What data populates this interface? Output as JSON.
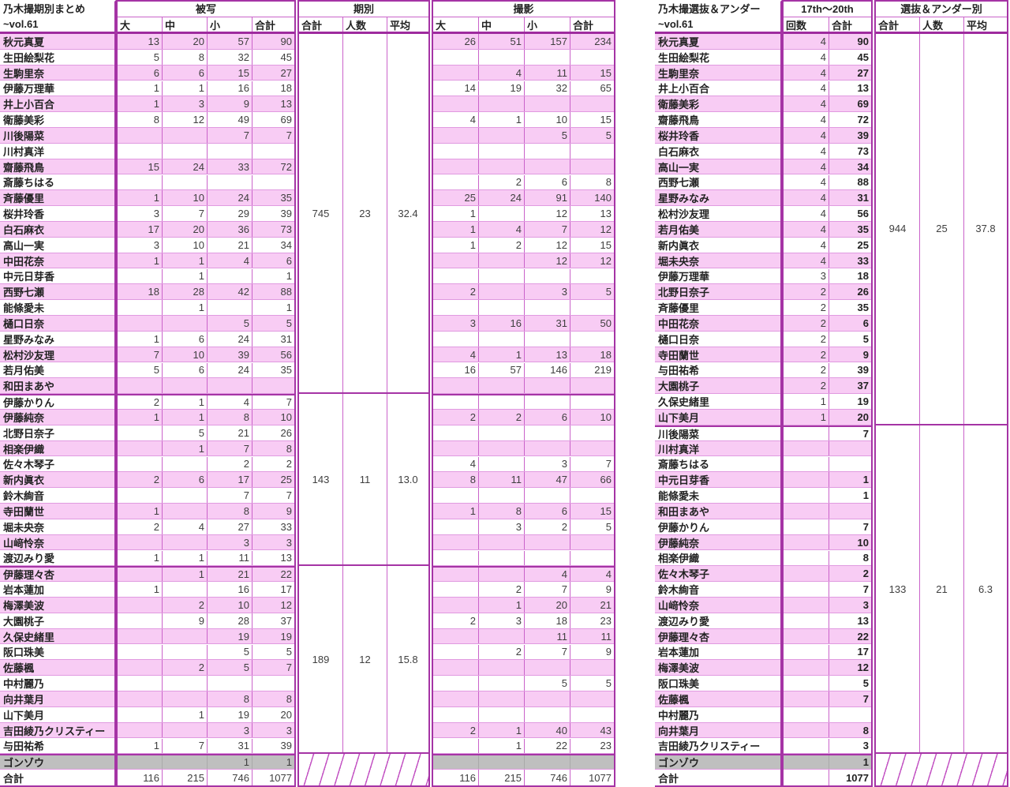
{
  "colors": {
    "row_pink": "#f8ccf4",
    "row_white": "#ffffff",
    "row_gray": "#bfbfbf",
    "grid_strong": "#a534a5",
    "grid_light": "#e09ae0",
    "grid_column": "#ca63ca",
    "header_separator": "#9e2b9e",
    "text": "#3f3f3f"
  },
  "left_table": {
    "title_line1": "乃木撮期別まとめ",
    "title_line2": "~vol.61",
    "hisha_header": "被写",
    "hisha_columns": [
      "大",
      "中",
      "小",
      "合計"
    ],
    "kibetsu_header": "期別",
    "kibetsu_columns": [
      "合計",
      "人数",
      "平均"
    ],
    "satsuei_header": "撮影",
    "satsuei_columns": [
      "大",
      "中",
      "小",
      "合計"
    ],
    "kibetsu_groups": [
      {
        "span": [
          0,
          22
        ],
        "values": [
          "745",
          "23",
          "32.4"
        ]
      },
      {
        "span": [
          23,
          33
        ],
        "values": [
          "143",
          "11",
          "13.0"
        ]
      },
      {
        "span": [
          34,
          45
        ],
        "values": [
          "189",
          "12",
          "15.8"
        ]
      }
    ],
    "rows": [
      {
        "name": "秋元真夏",
        "hisha": [
          "13",
          "20",
          "57",
          "90"
        ],
        "satsuei": [
          "26",
          "51",
          "157",
          "234"
        ]
      },
      {
        "name": "生田絵梨花",
        "hisha": [
          "5",
          "8",
          "32",
          "45"
        ],
        "satsuei": [
          "",
          "",
          "",
          ""
        ]
      },
      {
        "name": "生駒里奈",
        "hisha": [
          "6",
          "6",
          "15",
          "27"
        ],
        "satsuei": [
          "",
          "4",
          "11",
          "15"
        ]
      },
      {
        "name": "伊藤万理華",
        "hisha": [
          "1",
          "1",
          "16",
          "18"
        ],
        "satsuei": [
          "14",
          "19",
          "32",
          "65"
        ]
      },
      {
        "name": "井上小百合",
        "hisha": [
          "1",
          "3",
          "9",
          "13"
        ],
        "satsuei": [
          "",
          "",
          "",
          ""
        ]
      },
      {
        "name": "衛藤美彩",
        "hisha": [
          "8",
          "12",
          "49",
          "69"
        ],
        "satsuei": [
          "4",
          "1",
          "10",
          "15"
        ]
      },
      {
        "name": "川後陽菜",
        "hisha": [
          "",
          "",
          "7",
          "7"
        ],
        "satsuei": [
          "",
          "",
          "5",
          "5"
        ]
      },
      {
        "name": "川村真洋",
        "hisha": [
          "",
          "",
          "",
          ""
        ],
        "satsuei": [
          "",
          "",
          "",
          ""
        ]
      },
      {
        "name": "齋藤飛鳥",
        "hisha": [
          "15",
          "24",
          "33",
          "72"
        ],
        "satsuei": [
          "",
          "",
          "",
          ""
        ]
      },
      {
        "name": "斎藤ちはる",
        "hisha": [
          "",
          "",
          "",
          ""
        ],
        "satsuei": [
          "",
          "2",
          "6",
          "8"
        ]
      },
      {
        "name": "斉藤優里",
        "hisha": [
          "1",
          "10",
          "24",
          "35"
        ],
        "satsuei": [
          "25",
          "24",
          "91",
          "140"
        ]
      },
      {
        "name": "桜井玲香",
        "hisha": [
          "3",
          "7",
          "29",
          "39"
        ],
        "satsuei": [
          "1",
          "",
          "12",
          "13"
        ]
      },
      {
        "name": "白石麻衣",
        "hisha": [
          "17",
          "20",
          "36",
          "73"
        ],
        "satsuei": [
          "1",
          "4",
          "7",
          "12"
        ]
      },
      {
        "name": "高山一実",
        "hisha": [
          "3",
          "10",
          "21",
          "34"
        ],
        "satsuei": [
          "1",
          "2",
          "12",
          "15"
        ]
      },
      {
        "name": "中田花奈",
        "hisha": [
          "1",
          "1",
          "4",
          "6"
        ],
        "satsuei": [
          "",
          "",
          "12",
          "12"
        ]
      },
      {
        "name": "中元日芽香",
        "hisha": [
          "",
          "1",
          "",
          "1"
        ],
        "satsuei": [
          "",
          "",
          "",
          ""
        ]
      },
      {
        "name": "西野七瀬",
        "hisha": [
          "18",
          "28",
          "42",
          "88"
        ],
        "satsuei": [
          "2",
          "",
          "3",
          "5"
        ]
      },
      {
        "name": "能條愛未",
        "hisha": [
          "",
          "1",
          "",
          "1"
        ],
        "satsuei": [
          "",
          "",
          "",
          ""
        ]
      },
      {
        "name": "樋口日奈",
        "hisha": [
          "",
          "",
          "5",
          "5"
        ],
        "satsuei": [
          "3",
          "16",
          "31",
          "50"
        ]
      },
      {
        "name": "星野みなみ",
        "hisha": [
          "1",
          "6",
          "24",
          "31"
        ],
        "satsuei": [
          "",
          "",
          "",
          ""
        ]
      },
      {
        "name": "松村沙友理",
        "hisha": [
          "7",
          "10",
          "39",
          "56"
        ],
        "satsuei": [
          "4",
          "1",
          "13",
          "18"
        ]
      },
      {
        "name": "若月佑美",
        "hisha": [
          "5",
          "6",
          "24",
          "35"
        ],
        "satsuei": [
          "16",
          "57",
          "146",
          "219"
        ]
      },
      {
        "name": "和田まあや",
        "hisha": [
          "",
          "",
          "",
          ""
        ],
        "satsuei": [
          "",
          "",
          "",
          ""
        ]
      },
      {
        "name": "伊藤かりん",
        "hisha": [
          "2",
          "1",
          "4",
          "7"
        ],
        "satsuei": [
          "",
          "",
          "",
          ""
        ]
      },
      {
        "name": "伊藤純奈",
        "hisha": [
          "1",
          "1",
          "8",
          "10"
        ],
        "satsuei": [
          "2",
          "2",
          "6",
          "10"
        ]
      },
      {
        "name": "北野日奈子",
        "hisha": [
          "",
          "5",
          "21",
          "26"
        ],
        "satsuei": [
          "",
          "",
          "",
          ""
        ]
      },
      {
        "name": "相楽伊織",
        "hisha": [
          "",
          "1",
          "7",
          "8"
        ],
        "satsuei": [
          "",
          "",
          "",
          ""
        ]
      },
      {
        "name": "佐々木琴子",
        "hisha": [
          "",
          "",
          "2",
          "2"
        ],
        "satsuei": [
          "4",
          "",
          "3",
          "7"
        ]
      },
      {
        "name": "新内眞衣",
        "hisha": [
          "2",
          "6",
          "17",
          "25"
        ],
        "satsuei": [
          "8",
          "11",
          "47",
          "66"
        ]
      },
      {
        "name": "鈴木絢音",
        "hisha": [
          "",
          "",
          "7",
          "7"
        ],
        "satsuei": [
          "",
          "",
          "",
          ""
        ]
      },
      {
        "name": "寺田蘭世",
        "hisha": [
          "1",
          "",
          "8",
          "9"
        ],
        "satsuei": [
          "1",
          "8",
          "6",
          "15"
        ]
      },
      {
        "name": "堀未央奈",
        "hisha": [
          "2",
          "4",
          "27",
          "33"
        ],
        "satsuei": [
          "",
          "3",
          "2",
          "5"
        ]
      },
      {
        "name": "山﨑怜奈",
        "hisha": [
          "",
          "",
          "3",
          "3"
        ],
        "satsuei": [
          "",
          "",
          "",
          ""
        ]
      },
      {
        "name": "渡辺みり愛",
        "hisha": [
          "1",
          "1",
          "11",
          "13"
        ],
        "satsuei": [
          "",
          "",
          "",
          ""
        ]
      },
      {
        "name": "伊藤理々杏",
        "hisha": [
          "",
          "1",
          "21",
          "22"
        ],
        "satsuei": [
          "",
          "",
          "4",
          "4"
        ]
      },
      {
        "name": "岩本蓮加",
        "hisha": [
          "1",
          "",
          "16",
          "17"
        ],
        "satsuei": [
          "",
          "2",
          "7",
          "9"
        ]
      },
      {
        "name": "梅澤美波",
        "hisha": [
          "",
          "2",
          "10",
          "12"
        ],
        "satsuei": [
          "",
          "1",
          "20",
          "21"
        ]
      },
      {
        "name": "大園桃子",
        "hisha": [
          "",
          "9",
          "28",
          "37"
        ],
        "satsuei": [
          "2",
          "3",
          "18",
          "23"
        ]
      },
      {
        "name": "久保史緒里",
        "hisha": [
          "",
          "",
          "19",
          "19"
        ],
        "satsuei": [
          "",
          "",
          "11",
          "11"
        ]
      },
      {
        "name": "阪口珠美",
        "hisha": [
          "",
          "",
          "5",
          "5"
        ],
        "satsuei": [
          "",
          "2",
          "7",
          "9"
        ]
      },
      {
        "name": "佐藤楓",
        "hisha": [
          "",
          "2",
          "5",
          "7"
        ],
        "satsuei": [
          "",
          "",
          "",
          ""
        ]
      },
      {
        "name": "中村麗乃",
        "hisha": [
          "",
          "",
          "",
          ""
        ],
        "satsuei": [
          "",
          "",
          "5",
          "5"
        ]
      },
      {
        "name": "向井葉月",
        "hisha": [
          "",
          "",
          "8",
          "8"
        ],
        "satsuei": [
          "",
          "",
          "",
          ""
        ]
      },
      {
        "name": "山下美月",
        "hisha": [
          "",
          "1",
          "19",
          "20"
        ],
        "satsuei": [
          "",
          "",
          "",
          ""
        ]
      },
      {
        "name": "吉田綾乃クリスティー",
        "hisha": [
          "",
          "",
          "3",
          "3"
        ],
        "satsuei": [
          "2",
          "1",
          "40",
          "43"
        ]
      },
      {
        "name": "与田祐希",
        "hisha": [
          "1",
          "7",
          "31",
          "39"
        ],
        "satsuei": [
          "",
          "1",
          "22",
          "23"
        ]
      },
      {
        "name": "ゴンゾウ",
        "special": "gray",
        "hisha": [
          "",
          "",
          "1",
          "1"
        ],
        "satsuei": [
          "",
          "",
          "",
          ""
        ]
      },
      {
        "name": "合計",
        "special": "total",
        "hisha": [
          "116",
          "215",
          "746",
          "1077"
        ],
        "satsuei": [
          "116",
          "215",
          "746",
          "1077"
        ]
      }
    ]
  },
  "right_table": {
    "title_line1": "乃木撮選抜＆アンダー",
    "title_line2": "~vol.61",
    "period_header": "17th～20th",
    "period_columns": [
      "回数",
      "合計"
    ],
    "senbatsu_header": "選抜＆アンダー別",
    "senbatsu_columns": [
      "合計",
      "人数",
      "平均"
    ],
    "senbatsu_groups": [
      {
        "span": [
          0,
          24
        ],
        "values": [
          "944",
          "25",
          "37.8"
        ]
      },
      {
        "span": [
          25,
          45
        ],
        "values": [
          "133",
          "21",
          "6.3"
        ]
      }
    ],
    "rows": [
      {
        "name": "秋元真夏",
        "kaisu": "4",
        "goukei": "90"
      },
      {
        "name": "生田絵梨花",
        "kaisu": "4",
        "goukei": "45"
      },
      {
        "name": "生駒里奈",
        "kaisu": "4",
        "goukei": "27"
      },
      {
        "name": "井上小百合",
        "kaisu": "4",
        "goukei": "13"
      },
      {
        "name": "衛藤美彩",
        "kaisu": "4",
        "goukei": "69"
      },
      {
        "name": "齋藤飛鳥",
        "kaisu": "4",
        "goukei": "72"
      },
      {
        "name": "桜井玲香",
        "kaisu": "4",
        "goukei": "39"
      },
      {
        "name": "白石麻衣",
        "kaisu": "4",
        "goukei": "73"
      },
      {
        "name": "高山一実",
        "kaisu": "4",
        "goukei": "34"
      },
      {
        "name": "西野七瀬",
        "kaisu": "4",
        "goukei": "88"
      },
      {
        "name": "星野みなみ",
        "kaisu": "4",
        "goukei": "31"
      },
      {
        "name": "松村沙友理",
        "kaisu": "4",
        "goukei": "56"
      },
      {
        "name": "若月佑美",
        "kaisu": "4",
        "goukei": "35"
      },
      {
        "name": "新内眞衣",
        "kaisu": "4",
        "goukei": "25"
      },
      {
        "name": "堀未央奈",
        "kaisu": "4",
        "goukei": "33"
      },
      {
        "name": "伊藤万理華",
        "kaisu": "3",
        "goukei": "18"
      },
      {
        "name": "北野日奈子",
        "kaisu": "2",
        "goukei": "26"
      },
      {
        "name": "斉藤優里",
        "kaisu": "2",
        "goukei": "35"
      },
      {
        "name": "中田花奈",
        "kaisu": "2",
        "goukei": "6"
      },
      {
        "name": "樋口日奈",
        "kaisu": "2",
        "goukei": "5"
      },
      {
        "name": "寺田蘭世",
        "kaisu": "2",
        "goukei": "9"
      },
      {
        "name": "与田祐希",
        "kaisu": "2",
        "goukei": "39"
      },
      {
        "name": "大園桃子",
        "kaisu": "2",
        "goukei": "37"
      },
      {
        "name": "久保史緒里",
        "kaisu": "1",
        "goukei": "19"
      },
      {
        "name": "山下美月",
        "kaisu": "1",
        "goukei": "20"
      },
      {
        "name": "川後陽菜",
        "kaisu": "",
        "goukei": "7"
      },
      {
        "name": "川村真洋",
        "kaisu": "",
        "goukei": ""
      },
      {
        "name": "斎藤ちはる",
        "kaisu": "",
        "goukei": ""
      },
      {
        "name": "中元日芽香",
        "kaisu": "",
        "goukei": "1"
      },
      {
        "name": "能條愛未",
        "kaisu": "",
        "goukei": "1"
      },
      {
        "name": "和田まあや",
        "kaisu": "",
        "goukei": ""
      },
      {
        "name": "伊藤かりん",
        "kaisu": "",
        "goukei": "7"
      },
      {
        "name": "伊藤純奈",
        "kaisu": "",
        "goukei": "10"
      },
      {
        "name": "相楽伊織",
        "kaisu": "",
        "goukei": "8"
      },
      {
        "name": "佐々木琴子",
        "kaisu": "",
        "goukei": "2"
      },
      {
        "name": "鈴木絢音",
        "kaisu": "",
        "goukei": "7"
      },
      {
        "name": "山﨑怜奈",
        "kaisu": "",
        "goukei": "3"
      },
      {
        "name": "渡辺みり愛",
        "kaisu": "",
        "goukei": "13"
      },
      {
        "name": "伊藤理々杏",
        "kaisu": "",
        "goukei": "22"
      },
      {
        "name": "岩本蓮加",
        "kaisu": "",
        "goukei": "17"
      },
      {
        "name": "梅澤美波",
        "kaisu": "",
        "goukei": "12"
      },
      {
        "name": "阪口珠美",
        "kaisu": "",
        "goukei": "5"
      },
      {
        "name": "佐藤楓",
        "kaisu": "",
        "goukei": "7"
      },
      {
        "name": "中村麗乃",
        "kaisu": "",
        "goukei": ""
      },
      {
        "name": "向井葉月",
        "kaisu": "",
        "goukei": "8"
      },
      {
        "name": "吉田綾乃クリスティー",
        "kaisu": "",
        "goukei": "3"
      },
      {
        "name": "ゴンゾウ",
        "special": "gray",
        "kaisu": "",
        "goukei": "1"
      },
      {
        "name": "合計",
        "special": "total",
        "kaisu": "",
        "goukei": "1077"
      }
    ]
  }
}
